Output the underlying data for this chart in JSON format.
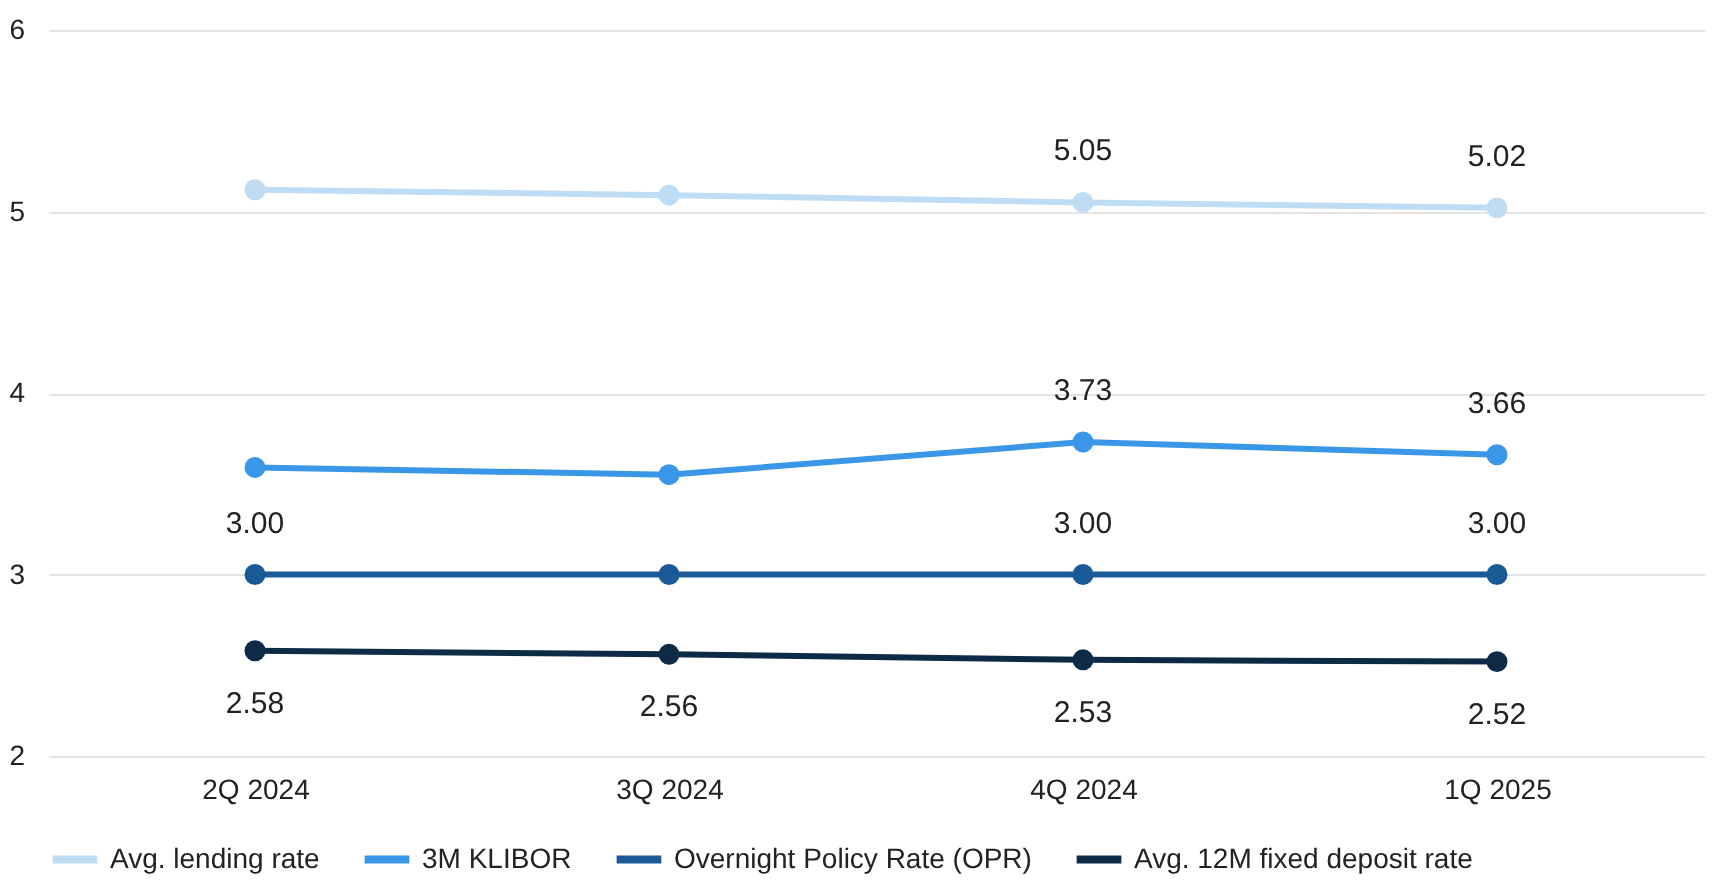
{
  "chart_data": {
    "type": "line",
    "categories": [
      "2Q 2024",
      "3Q 2024",
      "4Q 2024",
      "1Q 2025"
    ],
    "series": [
      {
        "name": "Avg. lending rate",
        "color": "#bfdcf5",
        "values": [
          5.12,
          5.09,
          5.05,
          5.02
        ],
        "value_labels": [
          null,
          null,
          "5.05",
          "5.02"
        ]
      },
      {
        "name": "3M KLIBOR",
        "color": "#3a97e8",
        "values": [
          3.59,
          3.55,
          3.73,
          3.66
        ],
        "value_labels": [
          null,
          null,
          "3.73",
          "3.66"
        ]
      },
      {
        "name": "Overnight Policy Rate (OPR)",
        "color": "#1a5a96",
        "values": [
          3.0,
          3.0,
          3.0,
          3.0
        ],
        "value_labels": [
          "3.00",
          null,
          "3.00",
          "3.00"
        ]
      },
      {
        "name": "Avg. 12M fixed deposit rate",
        "color": "#0d2a47",
        "values": [
          2.58,
          2.56,
          2.53,
          2.52
        ],
        "value_labels": [
          "2.58",
          "2.56",
          "2.53",
          "2.52"
        ]
      }
    ],
    "ylim": [
      2,
      6
    ],
    "yticks": [
      2,
      3,
      4,
      5,
      6
    ],
    "grid": "y",
    "legend": "bottom",
    "marker": "circle",
    "line_style": "solid"
  }
}
